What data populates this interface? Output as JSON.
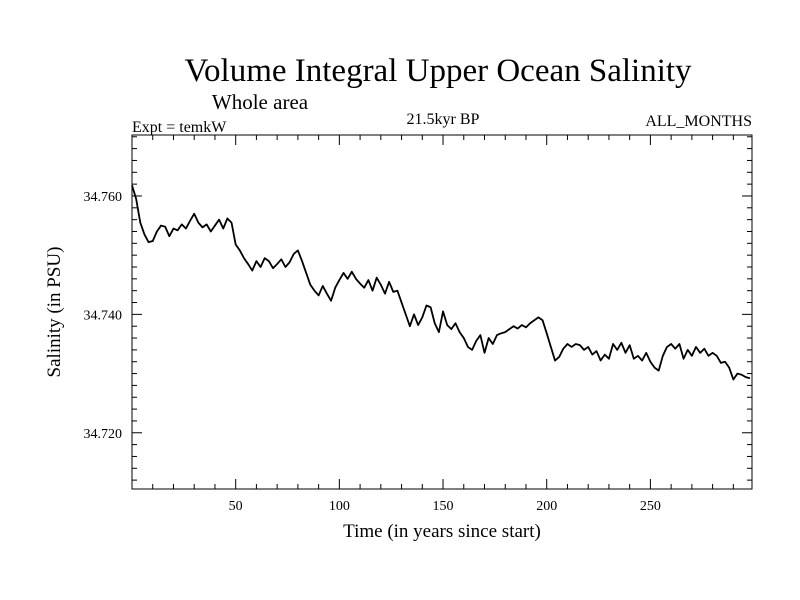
{
  "chart_data": {
    "type": "line",
    "title": "Volume Integral Upper Ocean Salinity",
    "subtitle": "Whole area",
    "experiment": "Expt = temkW",
    "period": "21.5kyr BP",
    "months": "ALL_MONTHS",
    "xlabel": "Time (in years since start)",
    "ylabel": "Salinity (in PSU)",
    "xlim": [
      0,
      299
    ],
    "ylim": [
      34.7105,
      34.7703
    ],
    "x_ticks": [
      50,
      100,
      150,
      200,
      250
    ],
    "x_tick_labels": [
      "50",
      "100",
      "150",
      "200",
      "250"
    ],
    "y_ticks": [
      34.72,
      34.74,
      34.76
    ],
    "y_tick_labels": [
      "34.720",
      "34.740",
      "34.760"
    ],
    "grid": false,
    "series": [
      {
        "name": "Salinity",
        "color": "#000000",
        "x": [
          0,
          2,
          4,
          6,
          8,
          10,
          12,
          14,
          16,
          18,
          20,
          22,
          24,
          26,
          28,
          30,
          32,
          34,
          36,
          38,
          40,
          42,
          44,
          46,
          48,
          50,
          52,
          54,
          56,
          58,
          60,
          62,
          64,
          66,
          68,
          70,
          72,
          74,
          76,
          78,
          80,
          82,
          84,
          86,
          88,
          90,
          92,
          94,
          96,
          98,
          100,
          102,
          104,
          106,
          108,
          110,
          112,
          114,
          116,
          118,
          120,
          122,
          124,
          126,
          128,
          130,
          132,
          134,
          136,
          138,
          140,
          142,
          144,
          146,
          148,
          150,
          152,
          154,
          156,
          158,
          160,
          162,
          164,
          166,
          168,
          170,
          172,
          174,
          176,
          178,
          180,
          182,
          184,
          186,
          188,
          190,
          192,
          194,
          196,
          198,
          200,
          202,
          204,
          206,
          208,
          210,
          212,
          214,
          216,
          218,
          220,
          222,
          224,
          226,
          228,
          230,
          232,
          234,
          236,
          238,
          240,
          242,
          244,
          246,
          248,
          250,
          252,
          254,
          256,
          258,
          260,
          262,
          264,
          266,
          268,
          270,
          272,
          274,
          276,
          278,
          280,
          282,
          284,
          286,
          288,
          290,
          292,
          294,
          296,
          298
        ],
        "values": [
          34.7618,
          34.7595,
          34.7555,
          34.7535,
          34.7522,
          34.7524,
          34.754,
          34.755,
          34.7548,
          34.7532,
          34.7545,
          34.7542,
          34.7552,
          34.7545,
          34.7558,
          34.757,
          34.7555,
          34.7547,
          34.7552,
          34.754,
          34.755,
          34.756,
          34.7545,
          34.7562,
          34.7555,
          34.7518,
          34.7508,
          34.7495,
          34.7485,
          34.7474,
          34.749,
          34.748,
          34.7495,
          34.749,
          34.7478,
          34.7485,
          34.7493,
          34.748,
          34.7488,
          34.7502,
          34.7508,
          34.749,
          34.747,
          34.745,
          34.744,
          34.7432,
          34.7448,
          34.7435,
          34.7423,
          34.7445,
          34.7458,
          34.747,
          34.746,
          34.7472,
          34.746,
          34.7452,
          34.7445,
          34.7458,
          34.744,
          34.7462,
          34.745,
          34.7435,
          34.7455,
          34.7438,
          34.744,
          34.742,
          34.74,
          34.738,
          34.74,
          34.7382,
          34.7395,
          34.7415,
          34.7412,
          34.7385,
          34.737,
          34.7405,
          34.7382,
          34.7375,
          34.7385,
          34.737,
          34.736,
          34.7345,
          34.734,
          34.7355,
          34.7365,
          34.7335,
          34.736,
          34.735,
          34.7365,
          34.7368,
          34.737,
          34.7375,
          34.738,
          34.7376,
          34.7382,
          34.7378,
          34.7385,
          34.739,
          34.7395,
          34.739,
          34.7368,
          34.7345,
          34.7322,
          34.7328,
          34.7342,
          34.735,
          34.7345,
          34.735,
          34.7348,
          34.734,
          34.7345,
          34.7332,
          34.7338,
          34.7322,
          34.7332,
          34.7325,
          34.735,
          34.734,
          34.7352,
          34.7335,
          34.7348,
          34.7325,
          34.733,
          34.7322,
          34.7335,
          34.732,
          34.731,
          34.7305,
          34.733,
          34.7345,
          34.735,
          34.7342,
          34.735,
          34.7325,
          34.734,
          34.733,
          34.7345,
          34.7335,
          34.7342,
          34.733,
          34.7335,
          34.733,
          34.7318,
          34.732,
          34.731,
          34.729,
          34.73,
          34.7298,
          34.7294,
          34.7292
        ]
      }
    ]
  }
}
